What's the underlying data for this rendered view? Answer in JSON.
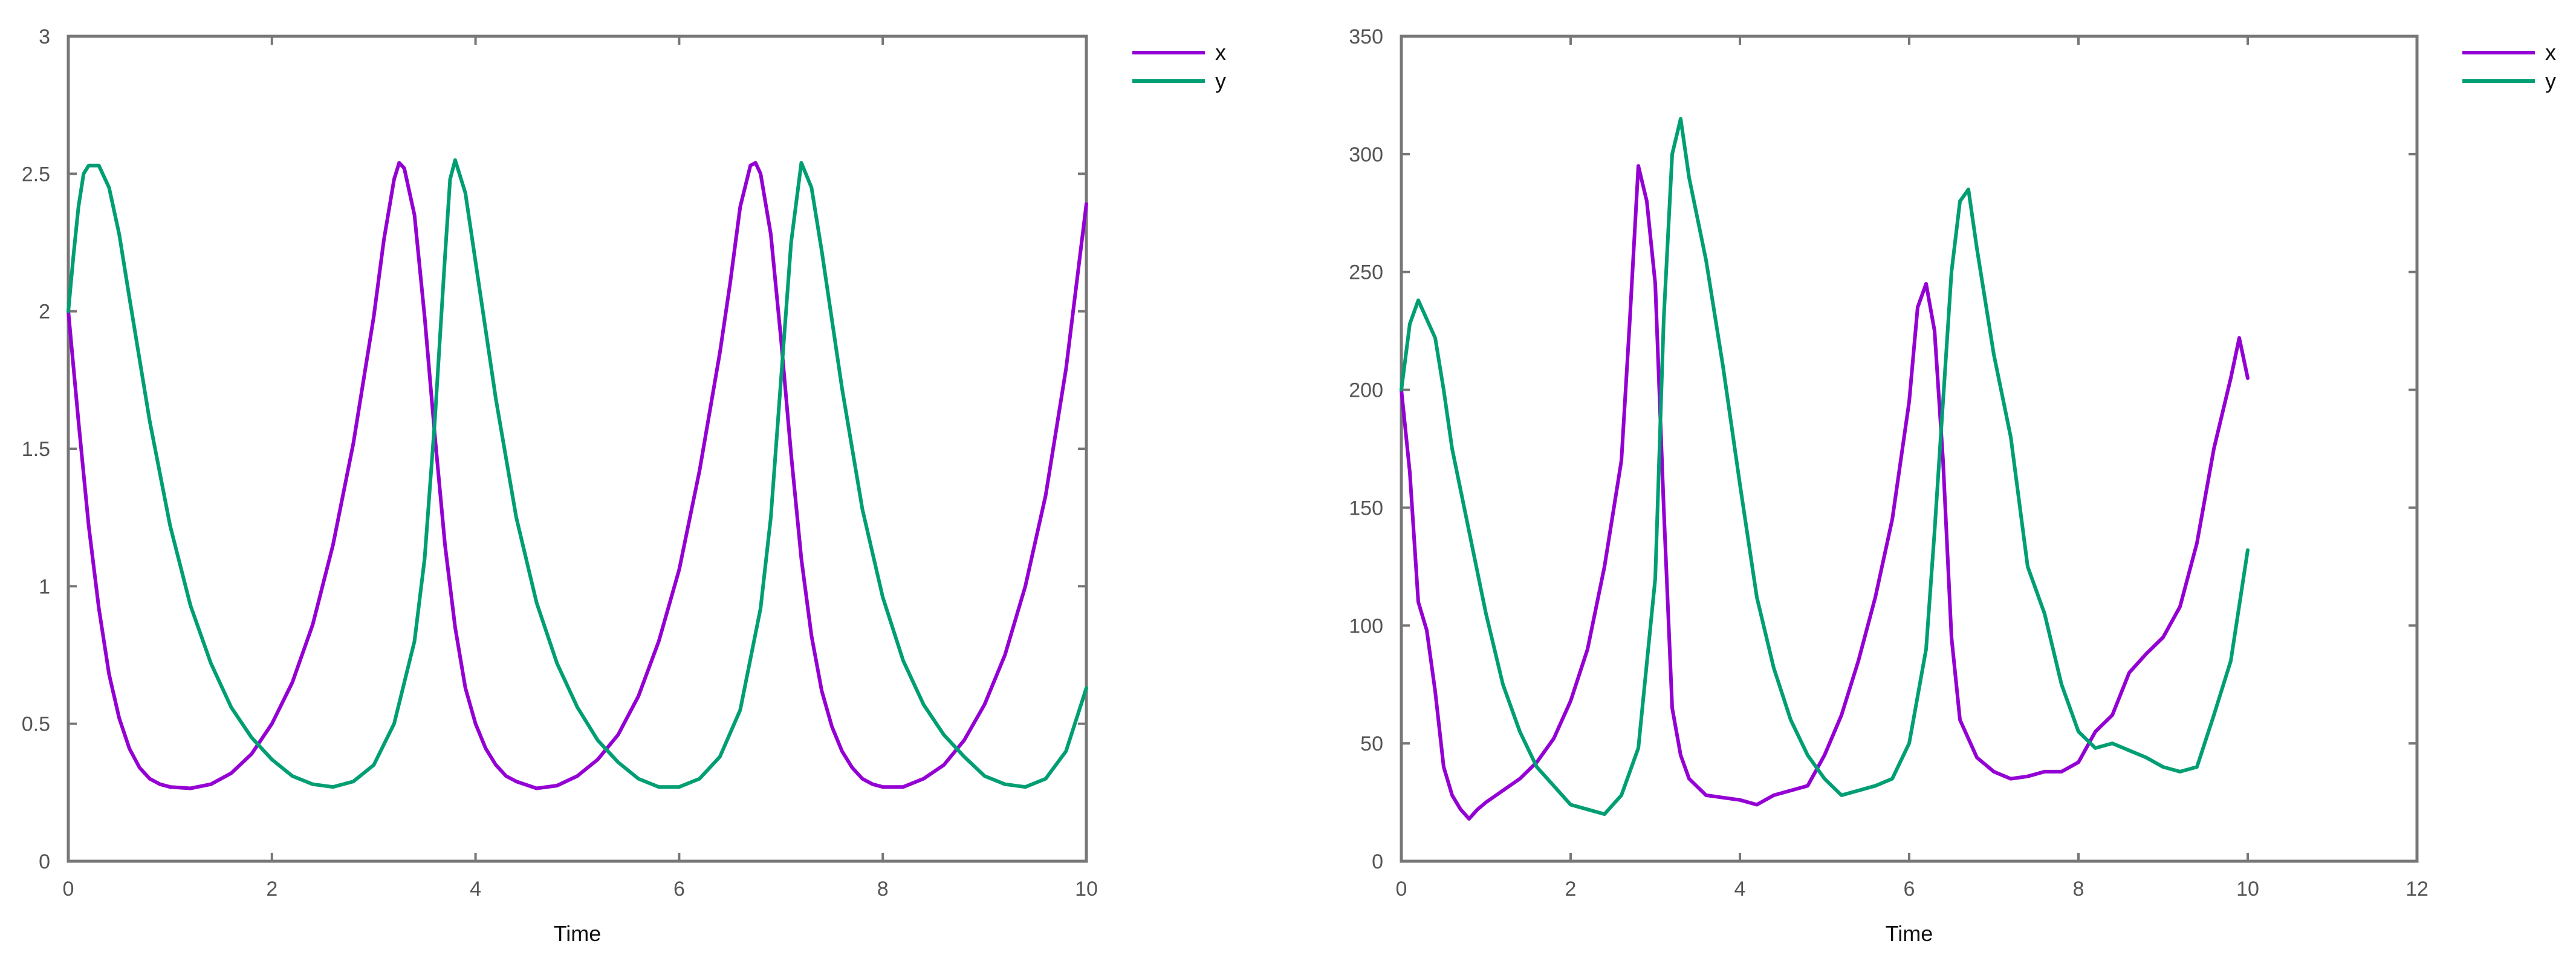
{
  "colors": {
    "x": "#9400d3",
    "y": "#009e73",
    "frame": "#777777"
  },
  "chart_data": [
    {
      "type": "line",
      "xlabel": "Time",
      "ylabel": "",
      "xlim": [
        0,
        10
      ],
      "ylim": [
        0,
        3
      ],
      "xticks": [
        0,
        2,
        4,
        6,
        8,
        10
      ],
      "yticks": [
        0,
        0.5,
        1,
        1.5,
        2,
        2.5,
        3
      ],
      "grid": false,
      "legend": "outside-top-right",
      "series": [
        {
          "name": "x",
          "color": "#9400d3",
          "points": [
            [
              0,
              2.0
            ],
            [
              0.1,
              1.6
            ],
            [
              0.2,
              1.22
            ],
            [
              0.3,
              0.92
            ],
            [
              0.4,
              0.68
            ],
            [
              0.5,
              0.52
            ],
            [
              0.6,
              0.41
            ],
            [
              0.7,
              0.34
            ],
            [
              0.8,
              0.3
            ],
            [
              0.9,
              0.28
            ],
            [
              1.0,
              0.27
            ],
            [
              1.2,
              0.265
            ],
            [
              1.4,
              0.28
            ],
            [
              1.6,
              0.32
            ],
            [
              1.8,
              0.39
            ],
            [
              2.0,
              0.5
            ],
            [
              2.2,
              0.65
            ],
            [
              2.4,
              0.86
            ],
            [
              2.6,
              1.15
            ],
            [
              2.8,
              1.52
            ],
            [
              3.0,
              1.98
            ],
            [
              3.1,
              2.26
            ],
            [
              3.2,
              2.48
            ],
            [
              3.25,
              2.54
            ],
            [
              3.3,
              2.52
            ],
            [
              3.4,
              2.35
            ],
            [
              3.5,
              1.98
            ],
            [
              3.6,
              1.55
            ],
            [
              3.7,
              1.15
            ],
            [
              3.8,
              0.85
            ],
            [
              3.9,
              0.63
            ],
            [
              4.0,
              0.5
            ],
            [
              4.1,
              0.41
            ],
            [
              4.2,
              0.35
            ],
            [
              4.3,
              0.31
            ],
            [
              4.4,
              0.29
            ],
            [
              4.6,
              0.265
            ],
            [
              4.8,
              0.275
            ],
            [
              5.0,
              0.31
            ],
            [
              5.2,
              0.37
            ],
            [
              5.4,
              0.46
            ],
            [
              5.6,
              0.6
            ],
            [
              5.8,
              0.8
            ],
            [
              6.0,
              1.06
            ],
            [
              6.2,
              1.42
            ],
            [
              6.4,
              1.85
            ],
            [
              6.5,
              2.1
            ],
            [
              6.6,
              2.38
            ],
            [
              6.7,
              2.53
            ],
            [
              6.75,
              2.54
            ],
            [
              6.8,
              2.5
            ],
            [
              6.9,
              2.28
            ],
            [
              7.0,
              1.9
            ],
            [
              7.1,
              1.48
            ],
            [
              7.2,
              1.1
            ],
            [
              7.3,
              0.82
            ],
            [
              7.4,
              0.62
            ],
            [
              7.5,
              0.49
            ],
            [
              7.6,
              0.4
            ],
            [
              7.7,
              0.34
            ],
            [
              7.8,
              0.3
            ],
            [
              7.9,
              0.28
            ],
            [
              8.0,
              0.27
            ],
            [
              8.2,
              0.27
            ],
            [
              8.4,
              0.3
            ],
            [
              8.6,
              0.35
            ],
            [
              8.8,
              0.44
            ],
            [
              9.0,
              0.57
            ],
            [
              9.2,
              0.75
            ],
            [
              9.4,
              1.0
            ],
            [
              9.6,
              1.33
            ],
            [
              9.8,
              1.79
            ],
            [
              10.0,
              2.39
            ]
          ]
        },
        {
          "name": "y",
          "color": "#009e73",
          "points": [
            [
              0,
              2.0
            ],
            [
              0.05,
              2.2
            ],
            [
              0.1,
              2.38
            ],
            [
              0.15,
              2.5
            ],
            [
              0.2,
              2.53
            ],
            [
              0.3,
              2.53
            ],
            [
              0.4,
              2.45
            ],
            [
              0.5,
              2.28
            ],
            [
              0.6,
              2.05
            ],
            [
              0.8,
              1.6
            ],
            [
              1.0,
              1.22
            ],
            [
              1.2,
              0.93
            ],
            [
              1.4,
              0.72
            ],
            [
              1.6,
              0.56
            ],
            [
              1.8,
              0.45
            ],
            [
              2.0,
              0.37
            ],
            [
              2.2,
              0.31
            ],
            [
              2.4,
              0.28
            ],
            [
              2.6,
              0.27
            ],
            [
              2.8,
              0.29
            ],
            [
              3.0,
              0.35
            ],
            [
              3.2,
              0.5
            ],
            [
              3.4,
              0.8
            ],
            [
              3.5,
              1.1
            ],
            [
              3.6,
              1.6
            ],
            [
              3.7,
              2.2
            ],
            [
              3.75,
              2.48
            ],
            [
              3.8,
              2.55
            ],
            [
              3.9,
              2.43
            ],
            [
              4.0,
              2.18
            ],
            [
              4.2,
              1.68
            ],
            [
              4.4,
              1.25
            ],
            [
              4.6,
              0.94
            ],
            [
              4.8,
              0.72
            ],
            [
              5.0,
              0.56
            ],
            [
              5.2,
              0.44
            ],
            [
              5.4,
              0.36
            ],
            [
              5.6,
              0.3
            ],
            [
              5.8,
              0.27
            ],
            [
              6.0,
              0.27
            ],
            [
              6.2,
              0.3
            ],
            [
              6.4,
              0.38
            ],
            [
              6.6,
              0.55
            ],
            [
              6.8,
              0.92
            ],
            [
              6.9,
              1.25
            ],
            [
              7.0,
              1.75
            ],
            [
              7.1,
              2.25
            ],
            [
              7.2,
              2.54
            ],
            [
              7.3,
              2.45
            ],
            [
              7.4,
              2.22
            ],
            [
              7.6,
              1.72
            ],
            [
              7.8,
              1.28
            ],
            [
              8.0,
              0.96
            ],
            [
              8.2,
              0.73
            ],
            [
              8.4,
              0.57
            ],
            [
              8.6,
              0.46
            ],
            [
              8.8,
              0.38
            ],
            [
              9.0,
              0.31
            ],
            [
              9.2,
              0.28
            ],
            [
              9.4,
              0.27
            ],
            [
              9.6,
              0.3
            ],
            [
              9.8,
              0.4
            ],
            [
              10.0,
              0.63
            ]
          ]
        }
      ]
    },
    {
      "type": "line",
      "xlabel": "Time",
      "ylabel": "",
      "xlim": [
        0,
        12
      ],
      "ylim": [
        0,
        350
      ],
      "xticks": [
        0,
        2,
        4,
        6,
        8,
        10,
        12
      ],
      "yticks": [
        0,
        50,
        100,
        150,
        200,
        250,
        300,
        350
      ],
      "grid": false,
      "legend": "outside-top-right",
      "series": [
        {
          "name": "x",
          "color": "#9400d3",
          "points": [
            [
              0,
              200
            ],
            [
              0.1,
              165
            ],
            [
              0.2,
              110
            ],
            [
              0.3,
              98
            ],
            [
              0.4,
              72
            ],
            [
              0.5,
              40
            ],
            [
              0.6,
              28
            ],
            [
              0.7,
              22
            ],
            [
              0.8,
              18
            ],
            [
              0.9,
              22
            ],
            [
              1.0,
              25
            ],
            [
              1.2,
              30
            ],
            [
              1.4,
              35
            ],
            [
              1.6,
              42
            ],
            [
              1.8,
              52
            ],
            [
              2.0,
              68
            ],
            [
              2.2,
              90
            ],
            [
              2.4,
              125
            ],
            [
              2.6,
              170
            ],
            [
              2.7,
              230
            ],
            [
              2.8,
              295
            ],
            [
              2.9,
              280
            ],
            [
              3.0,
              245
            ],
            [
              3.1,
              150
            ],
            [
              3.2,
              65
            ],
            [
              3.3,
              45
            ],
            [
              3.4,
              35
            ],
            [
              3.6,
              28
            ],
            [
              3.8,
              27
            ],
            [
              4.0,
              26
            ],
            [
              4.2,
              24
            ],
            [
              4.4,
              28
            ],
            [
              4.6,
              30
            ],
            [
              4.8,
              32
            ],
            [
              5.0,
              45
            ],
            [
              5.2,
              62
            ],
            [
              5.4,
              85
            ],
            [
              5.6,
              112
            ],
            [
              5.8,
              145
            ],
            [
              6.0,
              195
            ],
            [
              6.1,
              235
            ],
            [
              6.2,
              245
            ],
            [
              6.3,
              225
            ],
            [
              6.4,
              170
            ],
            [
              6.5,
              95
            ],
            [
              6.6,
              60
            ],
            [
              6.8,
              44
            ],
            [
              7.0,
              38
            ],
            [
              7.2,
              35
            ],
            [
              7.4,
              36
            ],
            [
              7.6,
              38
            ],
            [
              7.8,
              38
            ],
            [
              8.0,
              42
            ],
            [
              8.2,
              55
            ],
            [
              8.4,
              62
            ],
            [
              8.6,
              80
            ],
            [
              8.8,
              88
            ],
            [
              9.0,
              95
            ],
            [
              9.2,
              108
            ],
            [
              9.4,
              135
            ],
            [
              9.6,
              175
            ],
            [
              9.8,
              205
            ],
            [
              9.9,
              222
            ],
            [
              10.0,
              205
            ]
          ]
        },
        {
          "name": "y",
          "color": "#009e73",
          "points": [
            [
              0,
              200
            ],
            [
              0.1,
              228
            ],
            [
              0.2,
              238
            ],
            [
              0.3,
              230
            ],
            [
              0.4,
              222
            ],
            [
              0.5,
              200
            ],
            [
              0.6,
              175
            ],
            [
              0.8,
              140
            ],
            [
              1.0,
              105
            ],
            [
              1.2,
              75
            ],
            [
              1.4,
              55
            ],
            [
              1.6,
              40
            ],
            [
              1.8,
              32
            ],
            [
              2.0,
              24
            ],
            [
              2.2,
              22
            ],
            [
              2.4,
              20
            ],
            [
              2.6,
              28
            ],
            [
              2.8,
              48
            ],
            [
              3.0,
              120
            ],
            [
              3.1,
              230
            ],
            [
              3.2,
              300
            ],
            [
              3.3,
              315
            ],
            [
              3.4,
              290
            ],
            [
              3.6,
              255
            ],
            [
              3.8,
              210
            ],
            [
              4.0,
              160
            ],
            [
              4.2,
              112
            ],
            [
              4.4,
              82
            ],
            [
              4.6,
              60
            ],
            [
              4.8,
              45
            ],
            [
              5.0,
              35
            ],
            [
              5.2,
              28
            ],
            [
              5.4,
              30
            ],
            [
              5.6,
              32
            ],
            [
              5.8,
              35
            ],
            [
              6.0,
              50
            ],
            [
              6.2,
              90
            ],
            [
              6.3,
              140
            ],
            [
              6.4,
              195
            ],
            [
              6.5,
              250
            ],
            [
              6.6,
              280
            ],
            [
              6.7,
              285
            ],
            [
              6.8,
              260
            ],
            [
              7.0,
              215
            ],
            [
              7.2,
              180
            ],
            [
              7.4,
              125
            ],
            [
              7.6,
              105
            ],
            [
              7.8,
              75
            ],
            [
              8.0,
              55
            ],
            [
              8.2,
              48
            ],
            [
              8.4,
              50
            ],
            [
              8.6,
              47
            ],
            [
              8.8,
              44
            ],
            [
              9.0,
              40
            ],
            [
              9.2,
              38
            ],
            [
              9.4,
              40
            ],
            [
              9.6,
              62
            ],
            [
              9.8,
              85
            ],
            [
              10.0,
              132
            ]
          ]
        }
      ]
    }
  ]
}
